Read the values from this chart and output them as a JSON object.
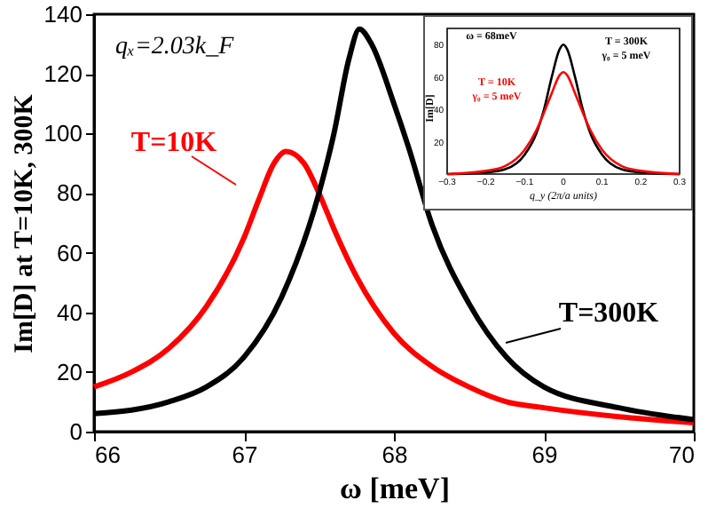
{
  "chart_data": [
    {
      "type": "line",
      "xlabel": "ω [meV]",
      "ylabel": "Im[D] at T=10K, 300K",
      "xlim": [
        66,
        70
      ],
      "ylim": [
        0,
        140
      ],
      "xticks": [
        66,
        67,
        68,
        69,
        70
      ],
      "yticks": [
        0,
        20,
        40,
        60,
        80,
        100,
        120,
        140
      ],
      "grid": false,
      "marker": "none",
      "line_style": "solid",
      "annotations": [
        "qₓ=2.03k_F"
      ],
      "series": [
        {
          "name": "T=10K",
          "color": "#ff0000",
          "x": [
            66,
            66.25,
            66.5,
            66.75,
            67,
            67.1,
            67.2,
            67.28,
            67.4,
            67.5,
            67.6,
            67.75,
            68,
            68.25,
            68.5,
            68.75,
            69,
            69.5,
            70
          ],
          "values": [
            15,
            20,
            28,
            42,
            65,
            78,
            90,
            94,
            90,
            80,
            68,
            52,
            33,
            22,
            15,
            10,
            8,
            5,
            3
          ]
        },
        {
          "name": "T=300K",
          "color": "#000000",
          "x": [
            66,
            66.5,
            66.75,
            67,
            67.25,
            67.5,
            67.6,
            67.7,
            67.77,
            67.85,
            68,
            68.1,
            68.25,
            68.5,
            68.75,
            69,
            69.5,
            70
          ],
          "values": [
            6,
            10,
            15,
            25,
            45,
            80,
            100,
            125,
            135,
            130,
            110,
            95,
            70,
            43,
            25,
            15,
            8,
            4
          ]
        }
      ]
    },
    {
      "type": "line",
      "xlabel": "q_y (2π/a units)",
      "ylabel": "Im[D]",
      "xlim": [
        -0.3,
        0.3
      ],
      "ylim": [
        0,
        90
      ],
      "xticks": [
        -0.3,
        -0.2,
        -0.1,
        0,
        0.1,
        0.2,
        0.3
      ],
      "yticks": [
        20,
        40,
        60,
        80
      ],
      "marker": "none",
      "line_style": "solid",
      "annotations": [
        "ω = 68meV",
        "γ₀ = 5 meV",
        "γ₀ = 5 meV"
      ],
      "series": [
        {
          "name": "T = 300K",
          "color": "#000000",
          "x": [
            -0.3,
            -0.2,
            -0.15,
            -0.1,
            -0.07,
            -0.05,
            -0.03,
            -0.01,
            0,
            0.01,
            0.03,
            0.05,
            0.07,
            0.1,
            0.15,
            0.2,
            0.3
          ],
          "values": [
            0,
            1,
            3,
            12,
            25,
            40,
            60,
            77,
            80,
            77,
            60,
            40,
            25,
            12,
            3,
            1,
            0
          ]
        },
        {
          "name": "T = 10K",
          "color": "#ff0000",
          "x": [
            -0.3,
            -0.2,
            -0.15,
            -0.1,
            -0.07,
            -0.05,
            -0.03,
            -0.01,
            0,
            0.01,
            0.03,
            0.05,
            0.07,
            0.1,
            0.15,
            0.2,
            0.3
          ],
          "values": [
            0,
            2,
            5,
            15,
            27,
            38,
            50,
            61,
            63,
            61,
            50,
            38,
            27,
            15,
            5,
            2,
            0
          ]
        }
      ]
    }
  ]
}
